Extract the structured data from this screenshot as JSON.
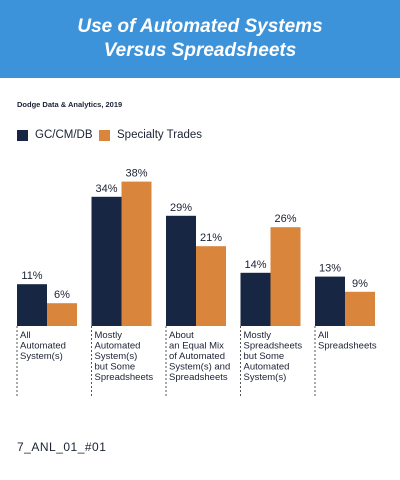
{
  "header": {
    "title_line1": "Use of Automated Systems",
    "title_line2": "Versus Spreadsheets"
  },
  "source": "Dodge Data & Analytics, 2019",
  "footer": "7_ANL_01_#01",
  "colors": {
    "header_bg": "#3d93d9",
    "series1": "#172642",
    "series2": "#d9853b"
  },
  "chart_data": {
    "type": "bar",
    "categories": [
      [
        "All",
        "Automated",
        "System(s)"
      ],
      [
        "Mostly",
        "Automated",
        "System(s)",
        "but Some",
        "Spreadsheets"
      ],
      [
        "About",
        "an Equal Mix",
        "of Automated",
        "System(s) and",
        "Spreadsheets"
      ],
      [
        "Mostly",
        "Spreadsheets",
        "but Some",
        "Automated",
        "System(s)"
      ],
      [
        "All",
        "Spreadsheets"
      ]
    ],
    "series": [
      {
        "name": "GC/CM/DB",
        "values": [
          11,
          34,
          29,
          14,
          13
        ],
        "labels": [
          "11%",
          "34%",
          "29%",
          "14%",
          "13%"
        ]
      },
      {
        "name": "Specialty Trades",
        "values": [
          6,
          38,
          21,
          26,
          9
        ],
        "labels": [
          "6%",
          "38%",
          "21%",
          "26%",
          "9%"
        ]
      }
    ],
    "legend_position": "top-left",
    "grid": false
  }
}
